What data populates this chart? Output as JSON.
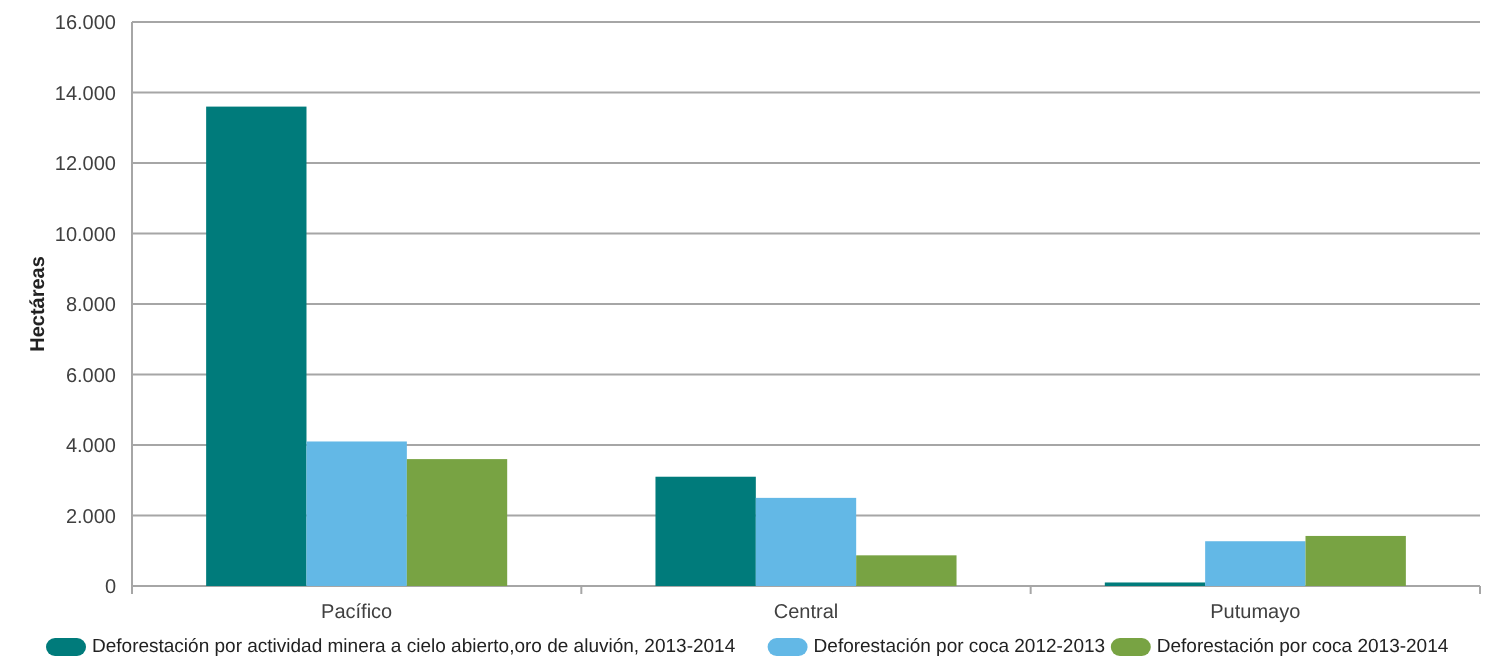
{
  "chart_data": {
    "type": "bar",
    "ylabel": "Hectáreas",
    "categories": [
      "Pacífico",
      "Central",
      "Putumayo"
    ],
    "series": [
      {
        "name": "Deforestación por actividad minera a cielo abierto,oro de aluvión, 2013-2014",
        "color": "#007b7b",
        "values": [
          13600,
          3100,
          100
        ]
      },
      {
        "name": "Deforestación por coca 2012-2013",
        "color": "#63b8e6",
        "values": [
          4100,
          2500,
          1270
        ]
      },
      {
        "name": "Deforestación por coca 2013-2014",
        "color": "#78a343",
        "values": [
          3600,
          870,
          1420
        ]
      }
    ],
    "ylim": [
      0,
      16000
    ],
    "yticks": [
      {
        "value": 0,
        "label": "0"
      },
      {
        "value": 2000,
        "label": "2.000"
      },
      {
        "value": 4000,
        "label": "4.000"
      },
      {
        "value": 6000,
        "label": "6.000"
      },
      {
        "value": 8000,
        "label": "8.000"
      },
      {
        "value": 10000,
        "label": "10.000"
      },
      {
        "value": 12000,
        "label": "12.000"
      },
      {
        "value": 14000,
        "label": "14.000"
      },
      {
        "value": 16000,
        "label": "16.000"
      }
    ],
    "grid": "y",
    "legend": "bottom"
  }
}
